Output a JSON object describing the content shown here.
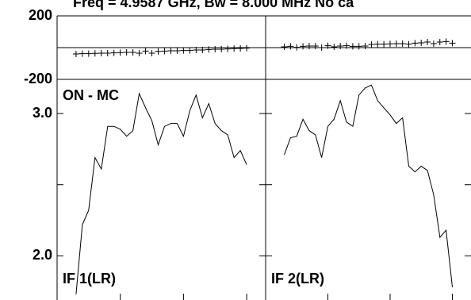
{
  "chart_data": {
    "type": "line",
    "title": "Freq = 4.9587 GHz, Bw = 8.000 MHz  No ca",
    "annotation": "ON - MC",
    "x": [
      0,
      1,
      2,
      3,
      4,
      5,
      6,
      7,
      8,
      9,
      10,
      11,
      12,
      13,
      14,
      15,
      16,
      17,
      18,
      19,
      20,
      21,
      22,
      23,
      24,
      25,
      26,
      27
    ],
    "xlim": [
      -3,
      30
    ],
    "xticks": [
      7,
      17,
      27
    ],
    "phase_ylim": [
      -200,
      200
    ],
    "phase_yticks": [
      200,
      -200
    ],
    "ylim": [
      1.69,
      3.24
    ],
    "yticks": [
      {
        "value": 3,
        "label": "3.0"
      },
      {
        "value": 2,
        "label": "2.0"
      }
    ],
    "minor_yticks": [
      2.5
    ],
    "color": "#000000",
    "panels": [
      {
        "label": "IF 1(LR)",
        "phase": [
          -40,
          -38,
          -38,
          -36,
          -35,
          -35,
          -33,
          -32,
          -30,
          -30,
          -35,
          -22,
          -35,
          -24,
          -22,
          -20,
          -20,
          -18,
          -18,
          -15,
          -15,
          -12,
          -10,
          -10,
          -8,
          -6,
          -5,
          -3
        ],
        "amplitude": [
          1.73,
          2.22,
          2.32,
          2.69,
          2.61,
          2.91,
          2.91,
          2.89,
          2.84,
          2.88,
          3.14,
          3.04,
          2.95,
          2.78,
          2.91,
          2.93,
          2.93,
          2.84,
          3.02,
          3.13,
          2.97,
          3.07,
          2.93,
          2.88,
          2.85,
          2.69,
          2.74,
          2.64
        ]
      },
      {
        "label": "IF 2(LR)",
        "phase": [
          5,
          8,
          2,
          8,
          10,
          10,
          0,
          12,
          5,
          10,
          12,
          8,
          8,
          10,
          20,
          22,
          22,
          24,
          25,
          25,
          22,
          28,
          30,
          35,
          25,
          35,
          38,
          28
        ],
        "amplitude": [
          2.71,
          2.83,
          2.84,
          2.96,
          2.88,
          2.85,
          2.69,
          2.91,
          2.96,
          3.09,
          2.94,
          2.91,
          3.13,
          3.18,
          3.2,
          3.09,
          3.04,
          2.99,
          2.93,
          2.97,
          2.63,
          2.59,
          2.63,
          2.6,
          2.43,
          2.13,
          2.18,
          1.78
        ]
      }
    ]
  }
}
